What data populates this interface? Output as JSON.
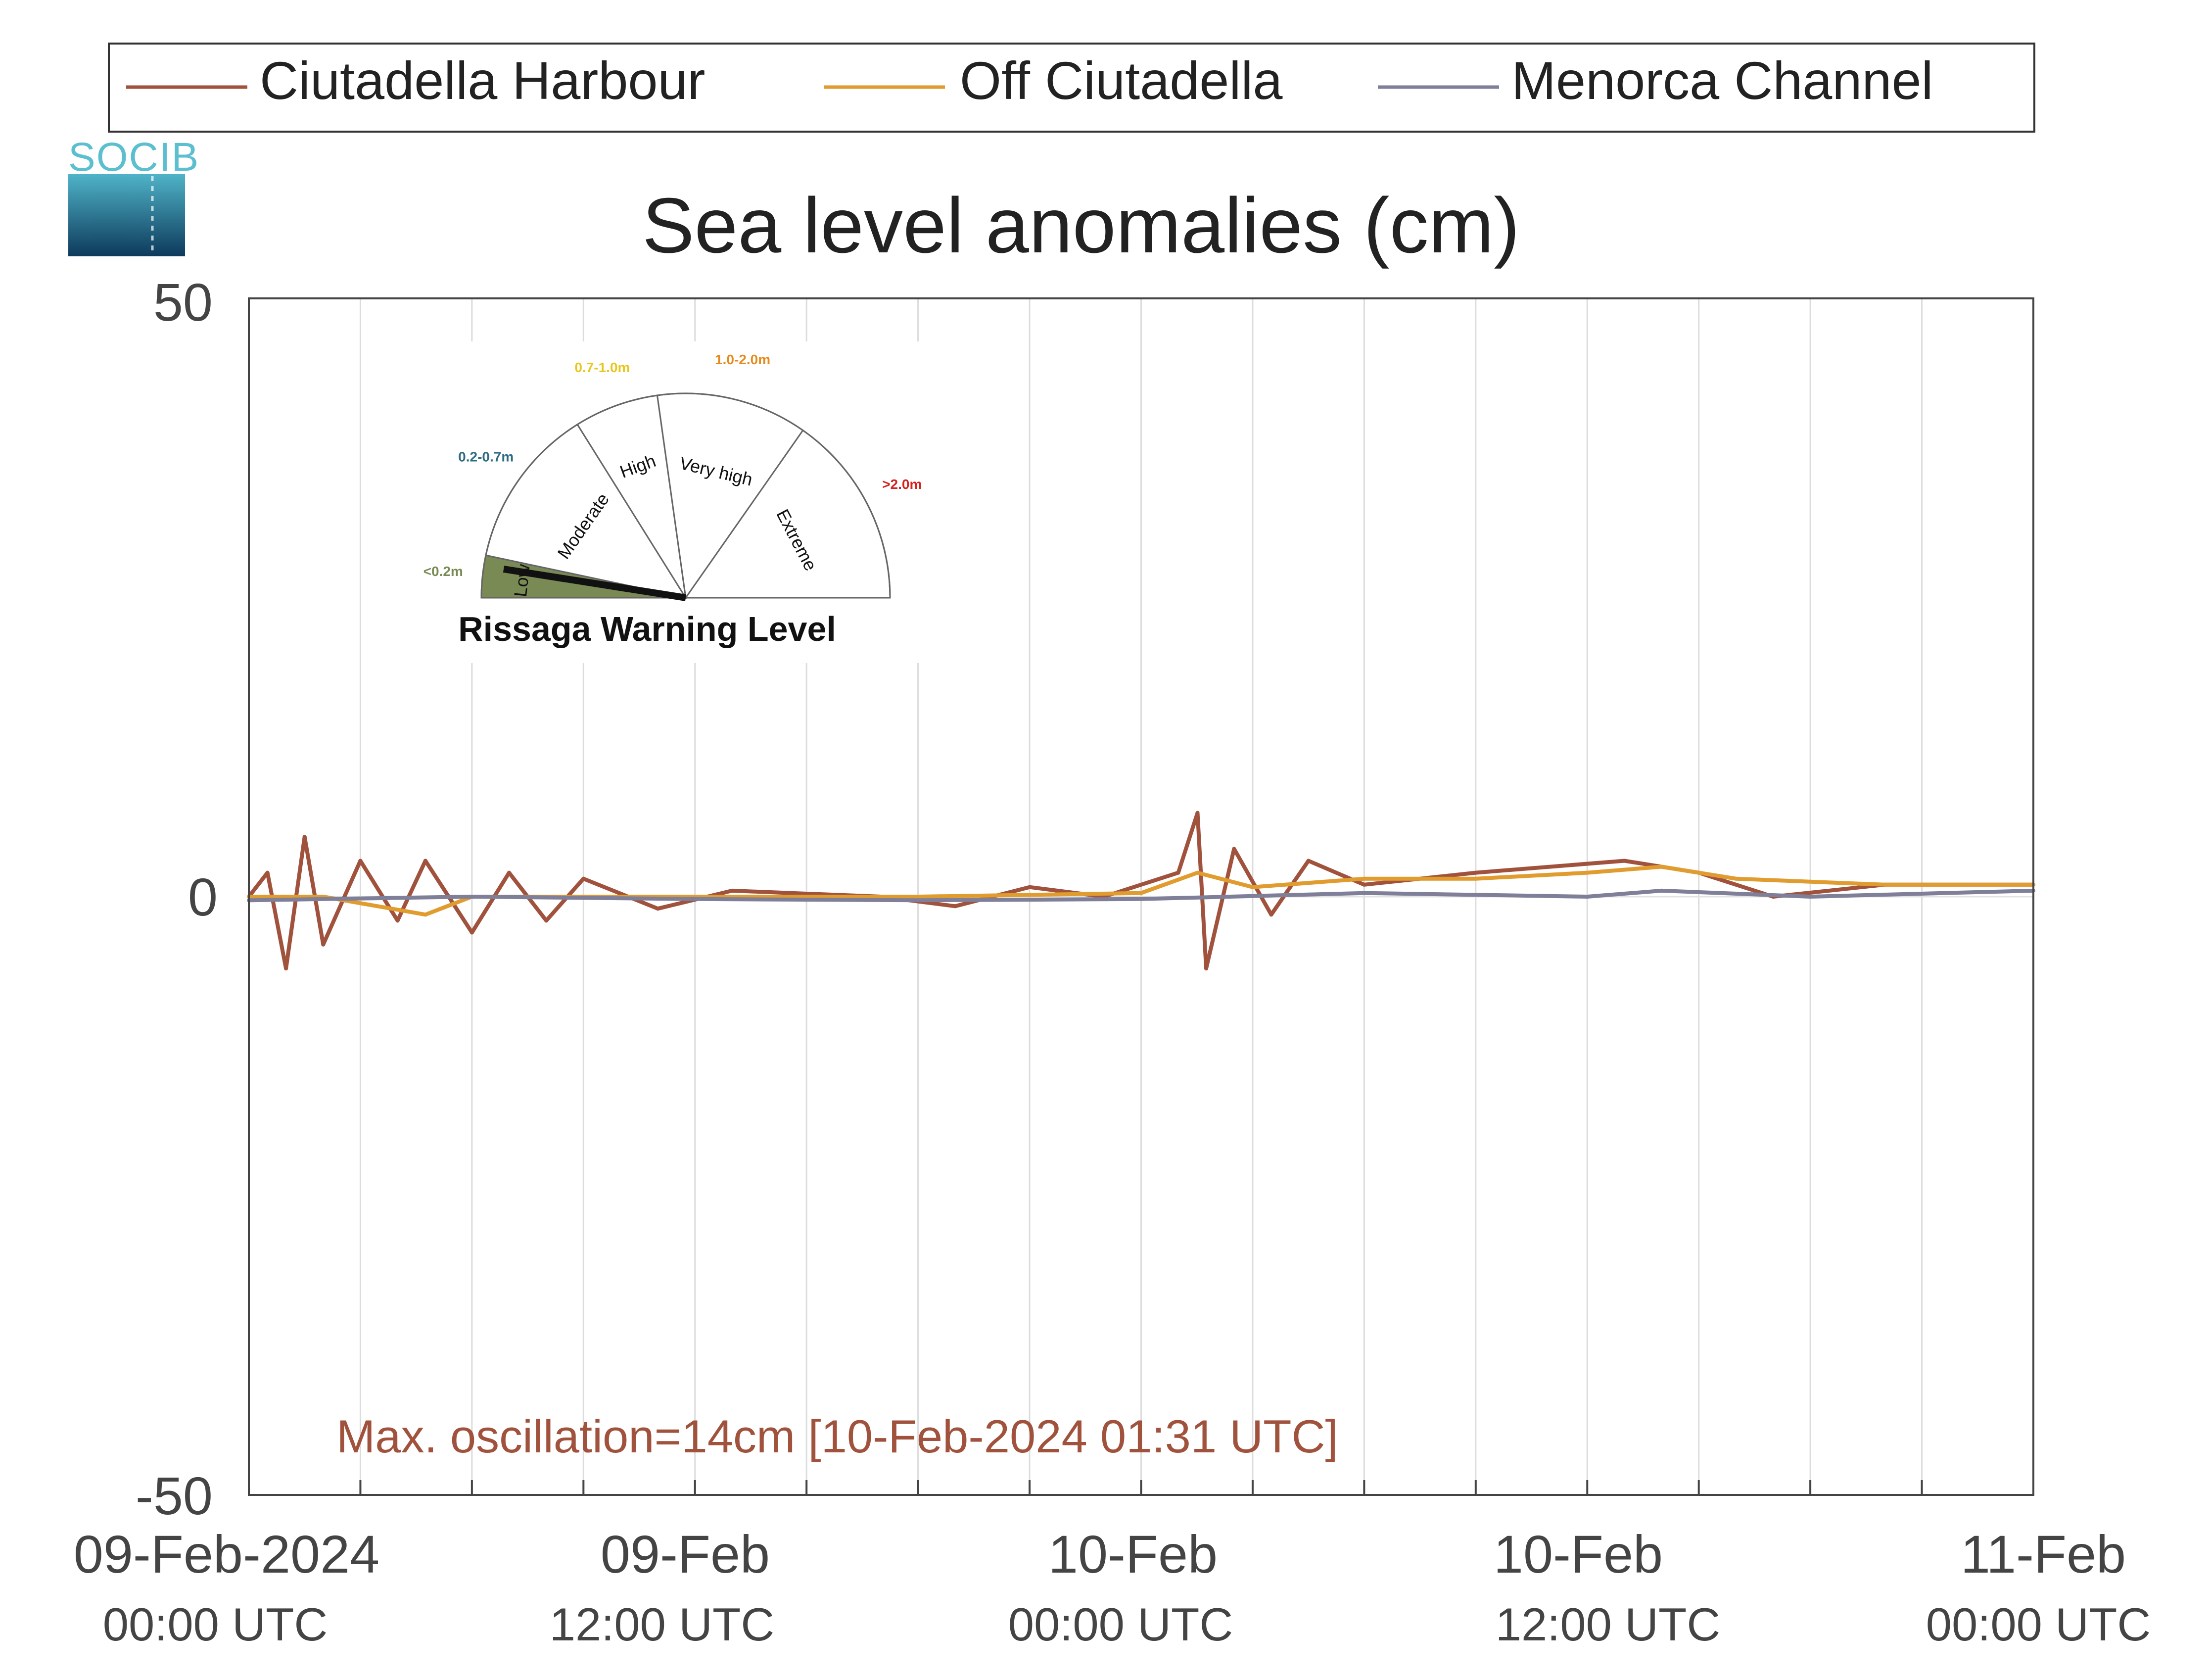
{
  "logo": {
    "text": "SOCIB",
    "colors": {
      "text": "#5bbfd0",
      "top": "#4fb3c7",
      "bottom": "#0d3a5c"
    }
  },
  "legend": {
    "items": [
      {
        "label": "Ciutadella Harbour",
        "color": "#a0523d"
      },
      {
        "label": "Off Ciutadella",
        "color": "#e19c2f"
      },
      {
        "label": "Menorca Channel",
        "color": "#7f7f9a"
      }
    ]
  },
  "chart_data": {
    "type": "line",
    "title": "Sea level anomalies (cm)",
    "ylim": [
      -50,
      50
    ],
    "yticks": [
      "50",
      "0",
      "-50"
    ],
    "xlim": [
      "2024-02-09 00:00",
      "2024-02-11 00:00"
    ],
    "xticks": [
      {
        "time": "2024-02-09 00:00",
        "line1": "09-Feb-2024",
        "line2": "00:00 UTC"
      },
      {
        "time": "2024-02-09 12:00",
        "line1": "09-Feb",
        "line2": "12:00 UTC"
      },
      {
        "time": "2024-02-10 00:00",
        "line1": "10-Feb",
        "line2": "00:00 UTC"
      },
      {
        "time": "2024-02-10 12:00",
        "line1": "10-Feb",
        "line2": "12:00 UTC"
      },
      {
        "time": "2024-02-11 00:00",
        "line1": "11-Feb",
        "line2": "00:00 UTC"
      }
    ],
    "grid_interval_hours": 3,
    "grid": true,
    "series": [
      {
        "name": "Ciutadella Harbour",
        "color": "#a0523d",
        "points": [
          [
            "2024-02-09 00:00",
            0
          ],
          [
            "2024-02-09 00:30",
            2
          ],
          [
            "2024-02-09 01:00",
            -6
          ],
          [
            "2024-02-09 01:30",
            5
          ],
          [
            "2024-02-09 02:00",
            -4
          ],
          [
            "2024-02-09 03:00",
            3
          ],
          [
            "2024-02-09 04:00",
            -2
          ],
          [
            "2024-02-09 04:45",
            3
          ],
          [
            "2024-02-09 06:00",
            -3
          ],
          [
            "2024-02-09 07:00",
            2
          ],
          [
            "2024-02-09 08:00",
            -2
          ],
          [
            "2024-02-09 09:00",
            1.5
          ],
          [
            "2024-02-09 11:00",
            -1
          ],
          [
            "2024-02-09 13:00",
            0.5
          ],
          [
            "2024-02-09 17:00",
            0
          ],
          [
            "2024-02-09 19:00",
            -0.8
          ],
          [
            "2024-02-09 21:00",
            0.8
          ],
          [
            "2024-02-09 23:00",
            0
          ],
          [
            "2024-02-10 01:00",
            2
          ],
          [
            "2024-02-10 01:31",
            7
          ],
          [
            "2024-02-10 01:45",
            -6
          ],
          [
            "2024-02-10 02:30",
            4
          ],
          [
            "2024-02-10 03:30",
            -1.5
          ],
          [
            "2024-02-10 04:30",
            3
          ],
          [
            "2024-02-10 06:00",
            1
          ],
          [
            "2024-02-10 09:00",
            2
          ],
          [
            "2024-02-10 13:00",
            3
          ],
          [
            "2024-02-10 15:00",
            2
          ],
          [
            "2024-02-10 17:00",
            0
          ],
          [
            "2024-02-10 20:00",
            1
          ],
          [
            "2024-02-11 00:00",
            1
          ]
        ]
      },
      {
        "name": "Off Ciutadella",
        "color": "#e19c2f",
        "points": [
          [
            "2024-02-09 00:00",
            0
          ],
          [
            "2024-02-09 02:00",
            0
          ],
          [
            "2024-02-09 04:45",
            -1.5
          ],
          [
            "2024-02-09 06:00",
            0
          ],
          [
            "2024-02-09 12:00",
            0
          ],
          [
            "2024-02-09 18:00",
            0
          ],
          [
            "2024-02-10 00:00",
            0.3
          ],
          [
            "2024-02-10 01:31",
            2
          ],
          [
            "2024-02-10 03:00",
            0.8
          ],
          [
            "2024-02-10 06:00",
            1.5
          ],
          [
            "2024-02-10 09:00",
            1.5
          ],
          [
            "2024-02-10 12:00",
            2
          ],
          [
            "2024-02-10 14:00",
            2.5
          ],
          [
            "2024-02-10 16:00",
            1.5
          ],
          [
            "2024-02-10 20:00",
            1
          ],
          [
            "2024-02-11 00:00",
            1
          ]
        ]
      },
      {
        "name": "Menorca Channel",
        "color": "#7f7f9a",
        "points": [
          [
            "2024-02-09 00:00",
            -0.3
          ],
          [
            "2024-02-09 06:00",
            0
          ],
          [
            "2024-02-09 12:00",
            -0.2
          ],
          [
            "2024-02-09 18:00",
            -0.3
          ],
          [
            "2024-02-10 00:00",
            -0.2
          ],
          [
            "2024-02-10 06:00",
            0.3
          ],
          [
            "2024-02-10 12:00",
            0
          ],
          [
            "2024-02-10 14:00",
            0.5
          ],
          [
            "2024-02-10 18:00",
            0
          ],
          [
            "2024-02-11 00:00",
            0.5
          ]
        ]
      }
    ],
    "annotation": {
      "text": "Max. oscillation=14cm [10-Feb-2024 01:31 UTC]",
      "color": "#a0523d"
    }
  },
  "warning_gauge": {
    "title": "Rissaga Warning Level",
    "current_level": "Low",
    "sectors": [
      {
        "name": "Low",
        "range": "<0.2m",
        "range_color": "#7a8a55",
        "fill": "#7a8a55"
      },
      {
        "name": "Moderate",
        "range": "0.2-0.7m",
        "range_color": "#2f6c84",
        "fill": "#ffffff"
      },
      {
        "name": "High",
        "range": "0.7-1.0m",
        "range_color": "#e8c61c",
        "fill": "#ffffff"
      },
      {
        "name": "Very high",
        "range": "1.0-2.0m",
        "range_color": "#e58b1a",
        "fill": "#ffffff"
      },
      {
        "name": "Extreme",
        "range": ">2.0m",
        "range_color": "#d62020",
        "fill": "#ffffff"
      }
    ]
  }
}
